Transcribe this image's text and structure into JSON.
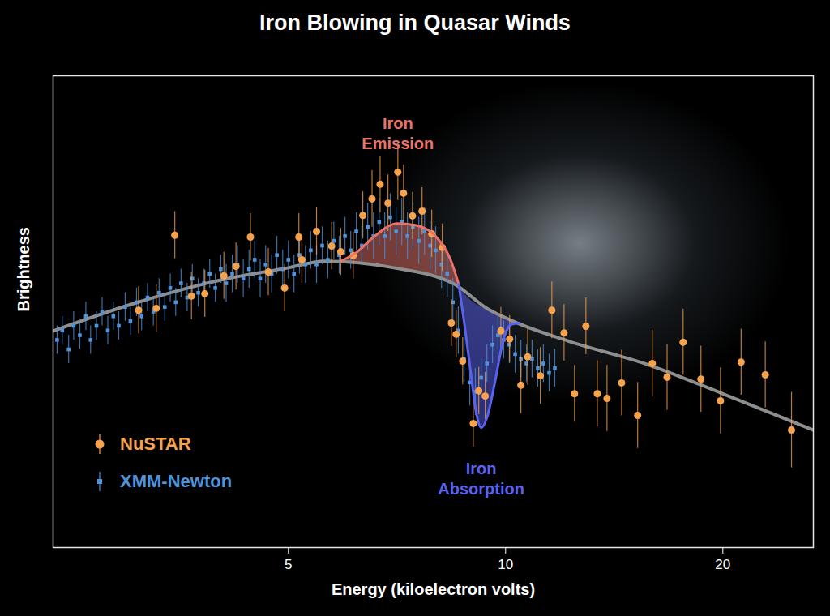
{
  "chart_data": {
    "type": "scatter",
    "title": "Iron Blowing in Quasar Winds",
    "x_label": "Energy (kiloelectron volts)",
    "y_label": "Brightness",
    "log": "x",
    "xlim": [
      2.36,
      26.7
    ],
    "ylim": [
      0,
      100
    ],
    "xticks": [
      5,
      10,
      20
    ],
    "tick_labels": "x",
    "grid": false,
    "legend": "lower left",
    "series": [
      {
        "name": "XMM-Newton",
        "color": "#4f93dc",
        "marker": "square",
        "x": [
          2.39,
          2.43,
          2.48,
          2.52,
          2.57,
          2.62,
          2.66,
          2.71,
          2.76,
          2.81,
          2.86,
          2.91,
          2.97,
          3.02,
          3.08,
          3.13,
          3.19,
          3.25,
          3.31,
          3.37,
          3.43,
          3.49,
          3.55,
          3.62,
          3.68,
          3.75,
          3.82,
          3.89,
          3.96,
          4.03,
          4.1,
          4.18,
          4.25,
          4.33,
          4.41,
          4.49,
          4.57,
          4.65,
          4.74,
          4.82,
          4.91,
          5.0,
          5.09,
          5.18,
          5.28,
          5.37,
          5.47,
          5.57,
          5.67,
          5.78,
          5.88,
          5.99,
          6.1,
          6.21,
          6.32,
          6.44,
          6.56,
          6.68,
          6.8,
          6.92,
          7.05,
          7.18,
          7.31,
          7.44,
          7.58,
          7.72,
          7.86,
          8.0,
          8.15,
          8.3,
          8.45,
          8.6,
          8.76,
          8.92,
          9.08,
          9.25,
          9.42,
          9.59,
          9.76,
          9.94,
          10.12,
          10.31,
          10.5,
          10.69,
          10.88,
          11.08,
          11.28,
          11.49,
          11.7
        ],
        "values": [
          44,
          46,
          42,
          47,
          45,
          49,
          44,
          47,
          50,
          46,
          49,
          47,
          51,
          48,
          52,
          49,
          53,
          50,
          54,
          51,
          55,
          52,
          56,
          53,
          57,
          54,
          56,
          58,
          55,
          59,
          56,
          58,
          60,
          57,
          59,
          61,
          57,
          60,
          58,
          62,
          59,
          61,
          58,
          62,
          60,
          63,
          60,
          64,
          61,
          65,
          62,
          66,
          63,
          67,
          64,
          68,
          66,
          69,
          66,
          70,
          67,
          69,
          66,
          68,
          65,
          67,
          64,
          63,
          60,
          58,
          52,
          46,
          40,
          35,
          33,
          36,
          39,
          43,
          45,
          44,
          43,
          41,
          40,
          39,
          40,
          38,
          39,
          37,
          38
        ],
        "errors": [
          3,
          3,
          3,
          3,
          3,
          3,
          3,
          3,
          3,
          3,
          3,
          3,
          3,
          3,
          3,
          3,
          3,
          3,
          3,
          3,
          3,
          3,
          3,
          3,
          3,
          3,
          3,
          3,
          3,
          3,
          4,
          4,
          4,
          4,
          4,
          4,
          4,
          4,
          4,
          4,
          4,
          4,
          4,
          4,
          4,
          4,
          4,
          4,
          4,
          4,
          4,
          4,
          4,
          4,
          4,
          5,
          5,
          5,
          5,
          5,
          5,
          5,
          5,
          5,
          5,
          5,
          5,
          5,
          5,
          5,
          5,
          5,
          5,
          5,
          5,
          4,
          4,
          4,
          4,
          4,
          4,
          4,
          4,
          4,
          4,
          4,
          4,
          4,
          4
        ]
      },
      {
        "name": "NuSTAR",
        "color": "#f7a24c",
        "marker": "circle",
        "x": [
          3.1,
          3.28,
          3.48,
          3.67,
          3.83,
          4.07,
          4.23,
          4.43,
          4.69,
          4.94,
          5.17,
          5.22,
          5.47,
          5.74,
          5.91,
          6.15,
          6.34,
          6.53,
          6.7,
          6.87,
          7.09,
          7.22,
          7.43,
          7.66,
          7.9,
          8.17,
          8.41,
          8.54,
          8.72,
          9.02,
          9.18,
          9.37,
          9.85,
          10.13,
          10.5,
          10.73,
          11.17,
          11.59,
          12.05,
          12.46,
          12.92,
          13.4,
          13.82,
          14.48,
          15.24,
          15.97,
          16.74,
          17.62,
          18.65,
          19.85,
          21.2,
          22.9,
          24.9
        ],
        "values": [
          50.3,
          50.7,
          66.2,
          53.3,
          53.8,
          57.6,
          59.6,
          65.8,
          58.4,
          55.0,
          65.8,
          61.0,
          67.0,
          63.9,
          62.7,
          61.9,
          70.4,
          73.9,
          77.0,
          73.0,
          79.6,
          75.1,
          70.3,
          71.3,
          66.5,
          63.6,
          47.6,
          45.2,
          39.5,
          26.3,
          33.2,
          32.1,
          45.9,
          44.2,
          34.4,
          40.4,
          36.4,
          50.3,
          45.5,
          32.6,
          46.9,
          32.6,
          31.6,
          34.9,
          28.0,
          39.0,
          36.1,
          43.5,
          35.7,
          31.1,
          39.3,
          36.6,
          24.9
        ],
        "errors": [
          5,
          5,
          5,
          5,
          5,
          5,
          5,
          5,
          5,
          5,
          5,
          5,
          5,
          5,
          5,
          5,
          5,
          6,
          6,
          6,
          6,
          6,
          5,
          5,
          5,
          5,
          5,
          5,
          5,
          5,
          5,
          5,
          5,
          5,
          6,
          6,
          6,
          6,
          6,
          6,
          6,
          7,
          7,
          7,
          7,
          7,
          7,
          7,
          7,
          7,
          7,
          7,
          8
        ]
      }
    ],
    "model": {
      "continuum": {
        "color": "#8e8e8e",
        "x": [
          2.36,
          3.02,
          4.03,
          5,
          5.61,
          7.0,
          8.5,
          9.42,
          10.2,
          12.2,
          15.8,
          20.0,
          26.7
        ],
        "values": [
          45.9,
          51.5,
          56.7,
          59.3,
          60.7,
          59.3,
          55.8,
          50.7,
          48.1,
          43.8,
          38.7,
          32.6,
          24.9
        ]
      },
      "features": [
        {
          "name": "Iron Emission",
          "color": "#e8736a",
          "x": [
            5.91,
            6.23,
            6.56,
            7.09,
            7.56,
            8.07,
            8.39,
            8.61
          ],
          "values": [
            60.7,
            62.7,
            65.8,
            68.7,
            68.2,
            65.3,
            61.0,
            55.8
          ],
          "baseline": [
            60.7,
            60.1,
            59.8,
            59.3,
            58.4,
            57.0,
            56.2,
            55.0
          ]
        },
        {
          "name": "Iron Absorption",
          "color": "#5a62f0",
          "x": [
            8.61,
            8.77,
            8.95,
            9.11,
            9.25,
            9.42,
            9.67,
            9.92,
            10.18,
            10.45
          ],
          "values": [
            55.8,
            47.3,
            36.9,
            28.4,
            25.4,
            27.5,
            35.2,
            43.8,
            47.3,
            47.6
          ],
          "baseline": [
            55.0,
            53.8,
            52.4,
            51.5,
            51.0,
            50.5,
            49.3,
            48.6,
            48.1,
            47.6
          ]
        }
      ]
    }
  }
}
